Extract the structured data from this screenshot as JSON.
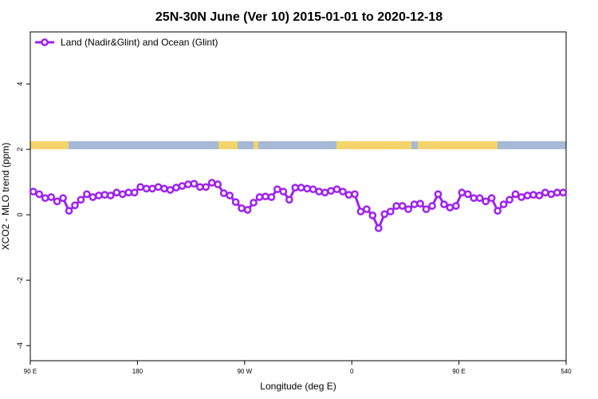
{
  "chart_data": {
    "type": "line",
    "title": "25N-30N June (Ver 10)   2015-01-01 to 2020-12-18",
    "xlabel": "Longitude (deg E)",
    "ylabel": "XCO2 - MLO trend (ppm)",
    "xlim": [
      90,
      540
    ],
    "xticks": [
      {
        "value": 90,
        "label": "90 E"
      },
      180,
      {
        "value": 270,
        "label": "90 W"
      },
      {
        "value": 360,
        "label": "0"
      },
      {
        "value": 450,
        "label": "90 E"
      },
      540
    ],
    "ylim": [
      -4.46,
      5.59
    ],
    "yticks": [
      -4,
      -2,
      0,
      2,
      4
    ],
    "legend": "top-left",
    "x": [
      92.5,
      97.5,
      102.5,
      107.5,
      112.5,
      117.5,
      122.5,
      127.5,
      132.5,
      137.5,
      142.5,
      147.5,
      152.5,
      157.5,
      162.5,
      167.5,
      172.5,
      177.5,
      182.5,
      187.5,
      192.5,
      197.5,
      202.5,
      207.5,
      212.5,
      217.5,
      222.5,
      227.5,
      232.5,
      237.5,
      242.5,
      247.5,
      252.5,
      257.5,
      262.5,
      267.5,
      272.5,
      277.5,
      282.5,
      287.5,
      292.5,
      297.5,
      302.5,
      307.5,
      312.5,
      317.5,
      322.5,
      327.5,
      332.5,
      337.5,
      342.5,
      347.5,
      352.5,
      357.5,
      362.5,
      367.5,
      372.5,
      377.5,
      382.5,
      387.5,
      392.5,
      397.5,
      402.5,
      407.5,
      412.5,
      417.5,
      422.5,
      427.5,
      432.5,
      437.5,
      442.5,
      447.5,
      452.5,
      457.5,
      462.5,
      467.5,
      472.5,
      477.5,
      482.5,
      487.5,
      492.5,
      497.5,
      502.5,
      507.5,
      512.5,
      517.5,
      522.5,
      527.5,
      532.5,
      537.5
    ],
    "series": [
      {
        "name": "Land (Nadir&Glint) and Ocean (Glint)",
        "color": "#a020f0",
        "values": [
          0.71,
          0.63,
          0.51,
          0.54,
          0.41,
          0.51,
          0.12,
          0.29,
          0.46,
          0.63,
          0.54,
          0.59,
          0.61,
          0.59,
          0.68,
          0.63,
          0.68,
          0.68,
          0.85,
          0.8,
          0.8,
          0.85,
          0.8,
          0.76,
          0.83,
          0.88,
          0.93,
          0.95,
          0.85,
          0.85,
          0.98,
          0.93,
          0.66,
          0.59,
          0.39,
          0.2,
          0.15,
          0.37,
          0.54,
          0.56,
          0.54,
          0.78,
          0.71,
          0.46,
          0.83,
          0.83,
          0.8,
          0.78,
          0.71,
          0.68,
          0.73,
          0.78,
          0.71,
          0.61,
          0.63,
          0.1,
          0.17,
          -0.02,
          -0.41,
          0.02,
          0.1,
          0.27,
          0.27,
          0.17,
          0.32,
          0.34,
          0.17,
          0.27,
          0.63,
          0.32,
          0.22,
          0.27,
          0.68,
          0.63,
          0.51,
          0.51,
          0.41,
          0.51,
          0.12,
          0.32,
          0.46,
          0.63,
          0.54,
          0.59,
          0.61,
          0.59,
          0.68,
          0.63,
          0.68,
          0.68
        ]
      }
    ]
  }
}
